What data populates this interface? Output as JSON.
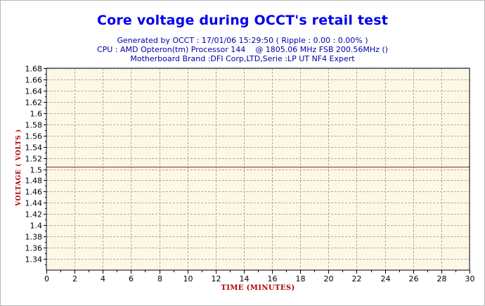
{
  "chart_data": {
    "type": "line",
    "title": "Core voltage during OCCT's retail test",
    "subtitle_lines": [
      "Generated by OCCT : 17/01/06 15:29:50 ( Ripple : 0.00 : 0.00% )",
      "CPU : AMD Opteron(tm) Processor 144    @ 1805.06 MHz FSB 200.56MHz ()",
      "Motherboard Brand :DFI Corp,LTD,Serie :LP UT NF4 Expert"
    ],
    "xlabel": "TIME (MINUTES)",
    "ylabel": "VOLTAGE ( VOLTS )",
    "xlim": [
      0,
      30
    ],
    "ylim": [
      1.32,
      1.68
    ],
    "x_ticks": [
      0,
      2,
      4,
      6,
      8,
      10,
      12,
      14,
      16,
      18,
      20,
      22,
      24,
      26,
      28,
      30
    ],
    "y_ticks": [
      1.34,
      1.36,
      1.38,
      1.4,
      1.42,
      1.44,
      1.46,
      1.48,
      1.5,
      1.52,
      1.54,
      1.56,
      1.58,
      1.6,
      1.62,
      1.64,
      1.66,
      1.68
    ],
    "grid": true,
    "series": [
      {
        "x": [
          0,
          30
        ],
        "values": [
          1.504,
          1.504
        ]
      }
    ],
    "colors": {
      "plot_background": "#fdf8e6",
      "grid": "#a8a8a8",
      "series": "#7a2a2a",
      "title": "#0000ee",
      "subtitle": "#0000aa",
      "axis_label": "#aa0000"
    }
  }
}
